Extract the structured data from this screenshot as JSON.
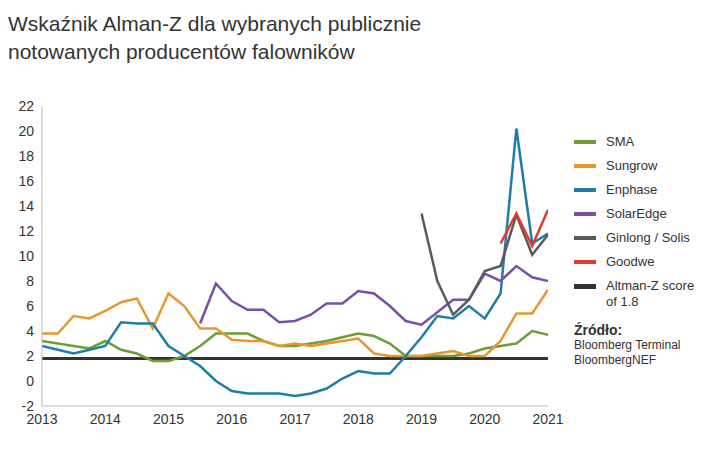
{
  "chart_data": {
    "type": "line",
    "title": "Wskaźnik Alman-Z dla wybranych publicznie notowanych producentów falowników",
    "x": [
      2013,
      2013.25,
      2013.5,
      2013.75,
      2014,
      2014.25,
      2014.5,
      2014.75,
      2015,
      2015.25,
      2015.5,
      2015.75,
      2016,
      2016.25,
      2016.5,
      2016.75,
      2017,
      2017.25,
      2017.5,
      2017.75,
      2018,
      2018.25,
      2018.5,
      2018.75,
      2019,
      2019.25,
      2019.5,
      2019.75,
      2020,
      2020.25,
      2020.5,
      2020.75,
      2021
    ],
    "series": [
      {
        "name": "SMA",
        "color": "#6b9e35",
        "values": [
          3.2,
          3.0,
          2.8,
          2.6,
          3.2,
          2.5,
          2.2,
          1.6,
          1.6,
          2.0,
          2.8,
          3.8,
          3.8,
          3.8,
          3.2,
          2.8,
          2.8,
          3.0,
          3.2,
          3.5,
          3.8,
          3.6,
          3.0,
          2.0,
          2.0,
          2.0,
          2.0,
          2.2,
          2.6,
          2.8,
          3.0,
          4.0,
          3.7
        ]
      },
      {
        "name": "Sungrow",
        "color": "#e8962e",
        "values": [
          3.8,
          3.8,
          5.2,
          5.0,
          5.6,
          6.3,
          6.6,
          4.2,
          7.0,
          6.0,
          4.2,
          4.2,
          3.3,
          3.2,
          3.2,
          2.8,
          3.0,
          2.8,
          3.0,
          3.2,
          3.4,
          2.2,
          2.0,
          2.0,
          2.0,
          2.2,
          2.4,
          2.0,
          2.0,
          3.2,
          5.4,
          5.4,
          7.3
        ]
      },
      {
        "name": "Enphase",
        "color": "#1f7ea8",
        "values": [
          2.8,
          2.5,
          2.2,
          2.5,
          2.8,
          4.7,
          4.6,
          4.6,
          2.8,
          2.0,
          1.2,
          0.0,
          -0.8,
          -1.0,
          -1.0,
          -1.0,
          -1.2,
          -1.0,
          -0.6,
          0.2,
          0.8,
          0.6,
          0.6,
          2.0,
          3.5,
          5.2,
          5.0,
          6.0,
          5.0,
          7.0,
          20.2,
          11.0,
          11.8
        ]
      },
      {
        "name": "SolarEdge",
        "color": "#7b4fa8",
        "values": [
          null,
          null,
          null,
          null,
          null,
          null,
          null,
          null,
          null,
          null,
          4.6,
          7.8,
          6.4,
          5.7,
          5.7,
          4.7,
          4.8,
          5.3,
          6.2,
          6.2,
          7.2,
          7.0,
          6.0,
          4.8,
          4.5,
          5.5,
          6.5,
          6.5,
          8.6,
          8.0,
          9.2,
          8.3,
          8.0
        ]
      },
      {
        "name": "Ginlong / Solis",
        "color": "#5a5a5a",
        "values": [
          null,
          null,
          null,
          null,
          null,
          null,
          null,
          null,
          null,
          null,
          null,
          null,
          null,
          null,
          null,
          null,
          null,
          null,
          null,
          null,
          null,
          null,
          null,
          null,
          13.4,
          8.0,
          5.3,
          6.5,
          8.8,
          9.2,
          13.3,
          10.1,
          11.7
        ]
      },
      {
        "name": "Goodwe",
        "color": "#e03b2f",
        "values": [
          null,
          null,
          null,
          null,
          null,
          null,
          null,
          null,
          null,
          null,
          null,
          null,
          null,
          null,
          null,
          null,
          null,
          null,
          null,
          null,
          null,
          null,
          null,
          null,
          null,
          null,
          null,
          null,
          null,
          11.0,
          13.4,
          10.8,
          13.7
        ]
      }
    ],
    "reference_line": {
      "name": "Altman-Z score of 1.8",
      "value": 1.8,
      "color": "#333333"
    },
    "xlim": [
      2013,
      2021
    ],
    "xticks": [
      2013,
      2014,
      2015,
      2016,
      2017,
      2018,
      2019,
      2020,
      2021
    ],
    "ylim": [
      -2,
      22
    ],
    "yticks": [
      -2,
      0,
      2,
      4,
      6,
      8,
      10,
      12,
      14,
      16,
      18,
      20,
      22
    ],
    "grid": false,
    "legend": "right",
    "source_title": "Źródło:",
    "source_lines": [
      "Bloomberg Terminal",
      "BloombergNEF"
    ]
  }
}
